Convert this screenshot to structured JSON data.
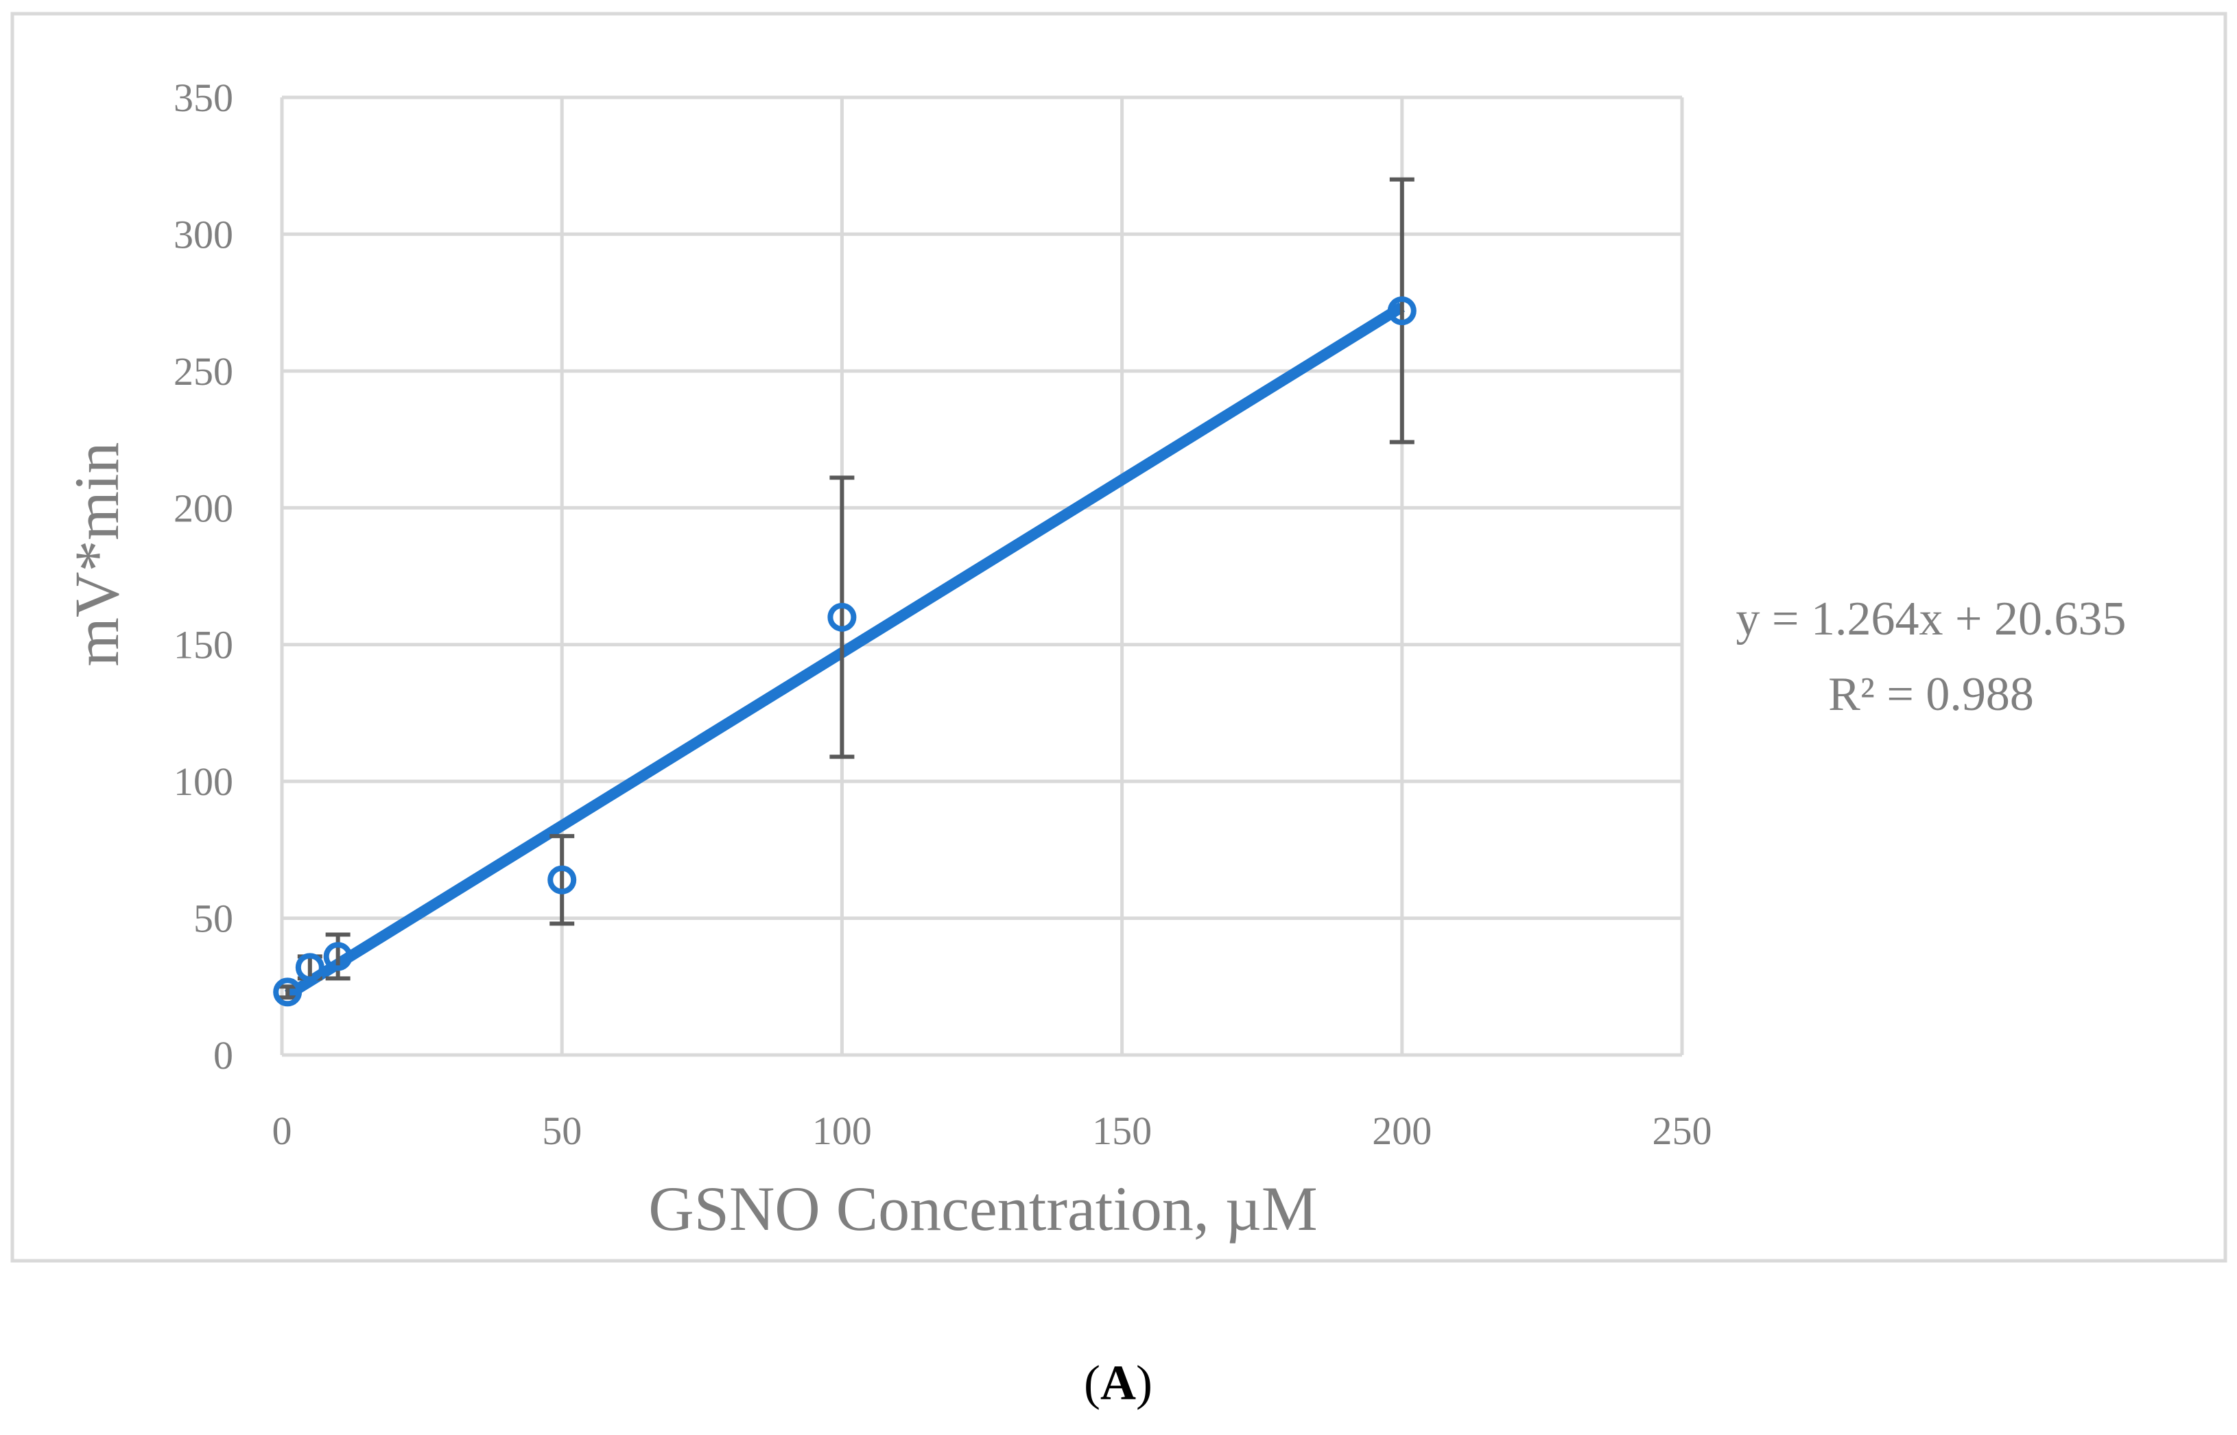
{
  "chart_data": {
    "type": "scatter",
    "xlabel": "GSNO Concentration,  µM",
    "ylabel": "mV*min",
    "xlim": [
      0,
      250
    ],
    "ylim": [
      0,
      350
    ],
    "xticks": [
      0,
      50,
      100,
      150,
      200,
      250
    ],
    "yticks": [
      0,
      50,
      100,
      150,
      200,
      250,
      300,
      350
    ],
    "grid": true,
    "series": [
      {
        "points": [
          {
            "x": 1,
            "y": 23,
            "err": 2
          },
          {
            "x": 5,
            "y": 32,
            "err": 4
          },
          {
            "x": 10,
            "y": 36,
            "err": 8
          },
          {
            "x": 50,
            "y": 64,
            "err": 16
          },
          {
            "x": 100,
            "y": 160,
            "err": 51
          },
          {
            "x": 200,
            "y": 272,
            "err": 48
          }
        ],
        "color": "#1f77d0"
      }
    ],
    "trendline": {
      "slope": 1.264,
      "intercept": 20.635,
      "x_range": [
        1,
        200
      ],
      "equation": "y = 1.264x + 20.635",
      "r2_text": "R² = 0.988",
      "color": "#1f77d0"
    },
    "errorbar_color": "#595959",
    "panel_label": {
      "open": "(",
      "letter": "A",
      "close": ")"
    }
  }
}
